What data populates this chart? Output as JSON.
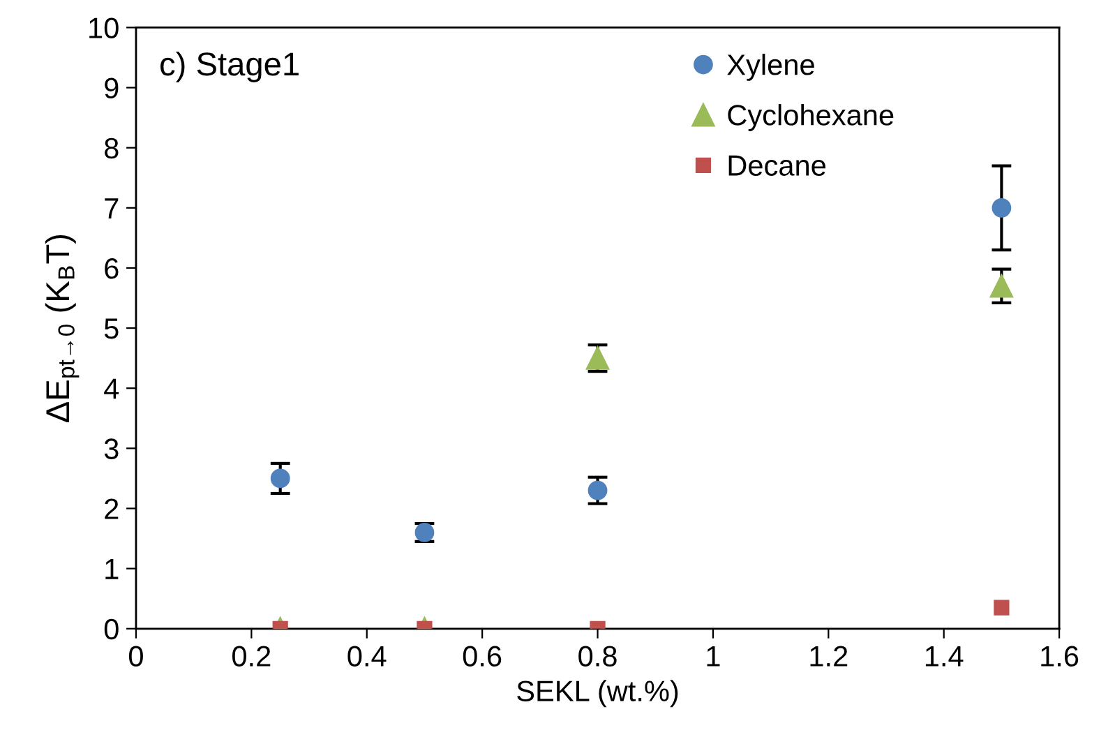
{
  "chart_data": {
    "type": "scatter",
    "xlabel": "SEKL (wt.%)",
    "ylabel": "ΔE$_{pt→0}$ (K$_{B}$T)",
    "annotations": [
      "c) Stage1"
    ],
    "x": [
      0.25,
      0.5,
      0.8,
      1.5
    ],
    "series": [
      {
        "name": "Xylene",
        "color": "#4f81bd",
        "marker": "circle",
        "values": [
          2.5,
          1.6,
          2.3,
          7.0
        ],
        "errors": [
          0.25,
          0.15,
          0.22,
          0.7
        ]
      },
      {
        "name": "Cyclohexane",
        "color": "#9bbb59",
        "marker": "triangle",
        "values": [
          0,
          0,
          4.5,
          5.7
        ],
        "errors": [
          null,
          null,
          0.22,
          0.28
        ]
      },
      {
        "name": "Decane",
        "color": "#c0504d",
        "marker": "square",
        "values": [
          0,
          0,
          0,
          0.35
        ]
      }
    ],
    "xlim": [
      0,
      1.6
    ],
    "xticks": [
      0,
      0.2,
      0.4,
      0.6,
      0.8,
      1,
      1.2,
      1.4,
      1.6
    ],
    "ylim": [
      0,
      10
    ],
    "yticks": [
      0,
      1,
      2,
      3,
      4,
      5,
      6,
      7,
      8,
      9,
      10
    ],
    "grid": false,
    "legend": "top right"
  }
}
